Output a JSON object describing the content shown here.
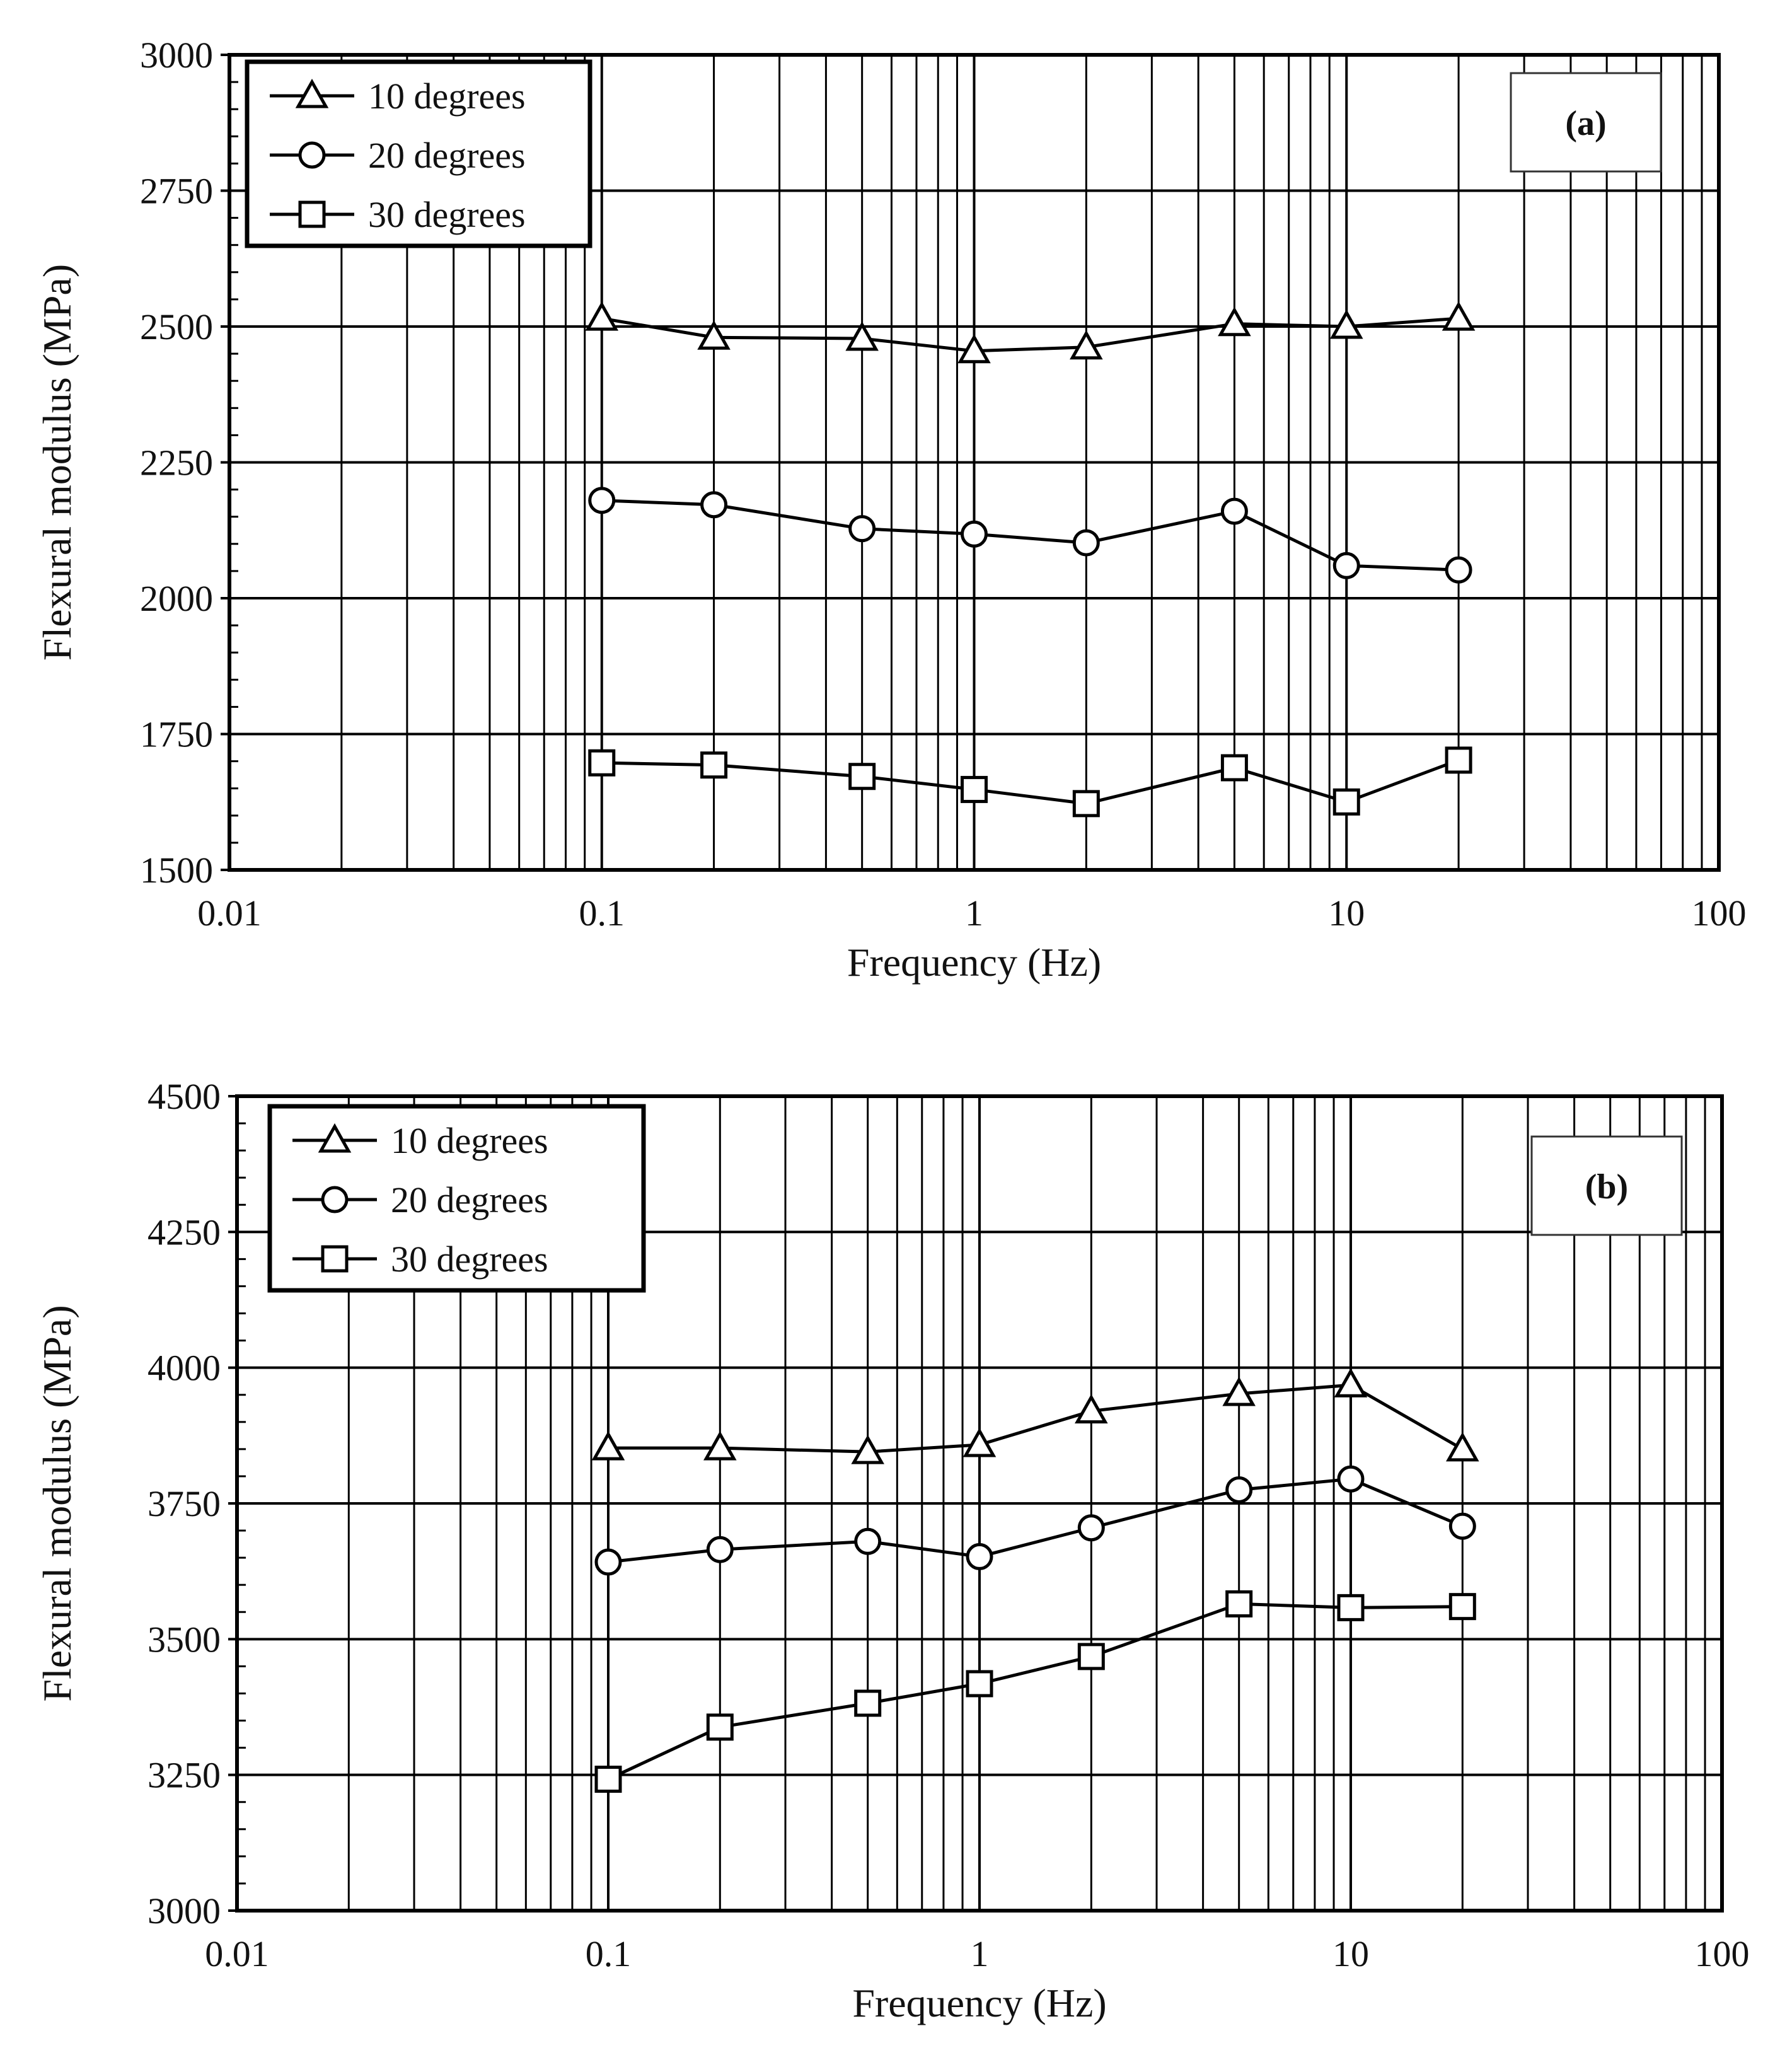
{
  "chart_data": [
    {
      "type": "line",
      "panel_label": "(a)",
      "xlabel": "Frequency (Hz)",
      "ylabel": "Flexural modulus (MPa)",
      "xscale": "log",
      "xlim": [
        0.01,
        100
      ],
      "ylim": [
        1500,
        3000
      ],
      "xticks": [
        "0.01",
        "0.1",
        "1",
        "10",
        "100"
      ],
      "yticks": [
        "1500",
        "1750",
        "2000",
        "2250",
        "2500",
        "2750",
        "3000"
      ],
      "grid": true,
      "legend_position": "top-left",
      "x": [
        0.1,
        0.2,
        0.5,
        1,
        2,
        5,
        10,
        20
      ],
      "series": [
        {
          "name": "10 degrees",
          "marker": "triangle",
          "values": [
            2515,
            2480,
            2478,
            2455,
            2462,
            2505,
            2500,
            2515
          ]
        },
        {
          "name": "20 degrees",
          "marker": "circle",
          "values": [
            2180,
            2172,
            2128,
            2118,
            2102,
            2160,
            2060,
            2052
          ]
        },
        {
          "name": "30 degrees",
          "marker": "square",
          "values": [
            1697,
            1693,
            1672,
            1648,
            1622,
            1688,
            1625,
            1702
          ]
        }
      ]
    },
    {
      "type": "line",
      "panel_label": "(b)",
      "xlabel": "Frequency (Hz)",
      "ylabel": "Flexural modulus (MPa)",
      "xscale": "log",
      "xlim": [
        0.01,
        100
      ],
      "ylim": [
        3000,
        4500
      ],
      "xticks": [
        "0.01",
        "0.1",
        "1",
        "10",
        "100"
      ],
      "yticks": [
        "3000",
        "3250",
        "3500",
        "3750",
        "4000",
        "4250",
        "4500"
      ],
      "grid": true,
      "legend_position": "top-left",
      "x": [
        0.1,
        0.2,
        0.5,
        1,
        2,
        5,
        10,
        20
      ],
      "series": [
        {
          "name": "10 degrees",
          "marker": "triangle",
          "values": [
            3852,
            3852,
            3845,
            3858,
            3920,
            3952,
            3968,
            3850
          ]
        },
        {
          "name": "20 degrees",
          "marker": "circle",
          "values": [
            3642,
            3665,
            3680,
            3652,
            3705,
            3775,
            3795,
            3708
          ]
        },
        {
          "name": "30 degrees",
          "marker": "square",
          "values": [
            3242,
            3338,
            3382,
            3418,
            3468,
            3565,
            3558,
            3560
          ]
        }
      ]
    }
  ],
  "colors": {
    "line": "#000000",
    "grid": "#000000",
    "background": "#ffffff"
  }
}
